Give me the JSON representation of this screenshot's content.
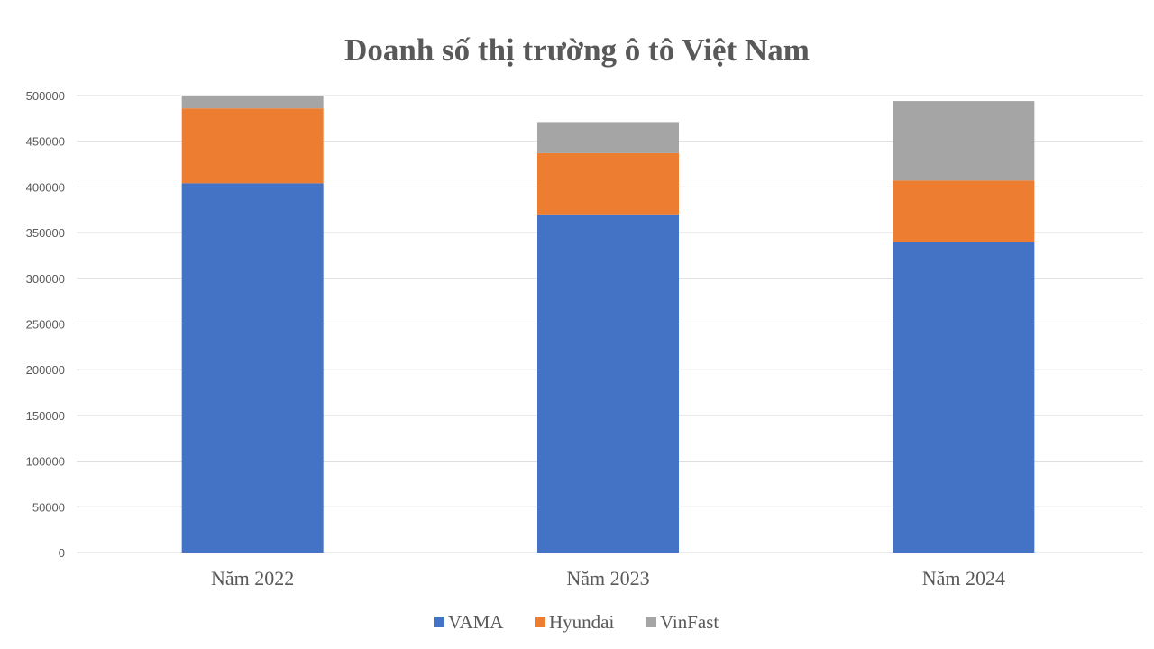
{
  "chart_data": {
    "type": "bar",
    "stacked": true,
    "title": "Doanh số thị trường ô tô Việt Nam",
    "categories": [
      "Năm 2022",
      "Năm 2023",
      "Năm 2024"
    ],
    "series": [
      {
        "name": "VAMA",
        "color": "#4472C4",
        "values": [
          404000,
          370000,
          340000
        ]
      },
      {
        "name": "Hyundai",
        "color": "#ED7D31",
        "values": [
          82000,
          67000,
          67000
        ]
      },
      {
        "name": "VinFast",
        "color": "#A5A5A5",
        "values": [
          14000,
          34000,
          87000
        ]
      }
    ],
    "ylim": [
      0,
      500000
    ],
    "yticks": [
      0,
      50000,
      100000,
      150000,
      200000,
      250000,
      300000,
      350000,
      400000,
      450000,
      500000
    ],
    "grid": true,
    "legend": "bottom",
    "xlabel": "",
    "ylabel": ""
  }
}
